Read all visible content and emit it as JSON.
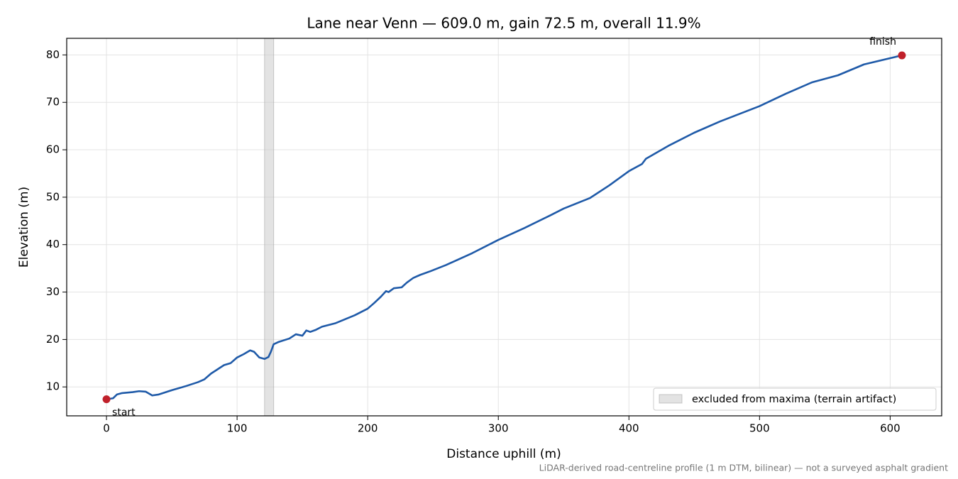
{
  "chart_data": {
    "type": "line",
    "title": "Lane near Venn — 609.0 m, gain 72.5 m, overall 11.9%",
    "xlabel": "Distance uphill (m)",
    "ylabel": "Elevation (m)",
    "note": "LiDAR-derived road-centreline profile (1 m DTM, bilinear) — not a surveyed asphalt gradient",
    "x": [
      0,
      5,
      8,
      12,
      20,
      25,
      30,
      35,
      40,
      50,
      60,
      70,
      75,
      80,
      90,
      95,
      100,
      105,
      110,
      113,
      117,
      121,
      124,
      126,
      128,
      132,
      140,
      145,
      150,
      153,
      156,
      160,
      165,
      175,
      190,
      200,
      205,
      210,
      214,
      216,
      220,
      226,
      230,
      235,
      240,
      248,
      260,
      280,
      300,
      320,
      340,
      350,
      370,
      385,
      400,
      410,
      413,
      430,
      450,
      470,
      500,
      520,
      540,
      560,
      580,
      609
    ],
    "series": [
      {
        "color": "#1f5aa8",
        "values": [
          7.4,
          7.6,
          8.4,
          8.7,
          8.9,
          9.1,
          9.0,
          8.2,
          8.4,
          9.3,
          10.1,
          11.0,
          11.6,
          12.8,
          14.6,
          15.0,
          16.2,
          16.9,
          17.7,
          17.4,
          16.2,
          15.9,
          16.3,
          17.5,
          19.0,
          19.5,
          20.2,
          21.1,
          20.8,
          21.9,
          21.6,
          22.0,
          22.7,
          23.4,
          25.1,
          26.5,
          27.7,
          29.0,
          30.2,
          30.0,
          30.8,
          31.0,
          32.0,
          33.0,
          33.6,
          34.4,
          35.7,
          38.2,
          41.0,
          43.5,
          46.2,
          47.6,
          49.8,
          52.5,
          55.5,
          57.0,
          58.1,
          60.8,
          63.6,
          66.0,
          69.2,
          71.8,
          74.2,
          75.7,
          78.0,
          79.9
        ]
      }
    ],
    "spans": [
      {
        "x": [
          121,
          128
        ],
        "label": "excluded from maxima (terrain artifact)",
        "color": "#c8c8c8"
      }
    ],
    "markers": [
      {
        "label": "start",
        "x": 0,
        "y": 7.4,
        "color": "#c0202a"
      },
      {
        "label": "finish",
        "x": 609,
        "y": 79.9,
        "color": "#c0202a"
      }
    ],
    "xlim": [
      -30.45,
      639.45
    ],
    "ylim": [
      3.9,
      83.5
    ],
    "xticks": [
      0,
      100,
      200,
      300,
      400,
      500,
      600
    ],
    "yticks": [
      10,
      20,
      30,
      40,
      50,
      60,
      70,
      80
    ],
    "grid": true,
    "legend": "lower right"
  }
}
